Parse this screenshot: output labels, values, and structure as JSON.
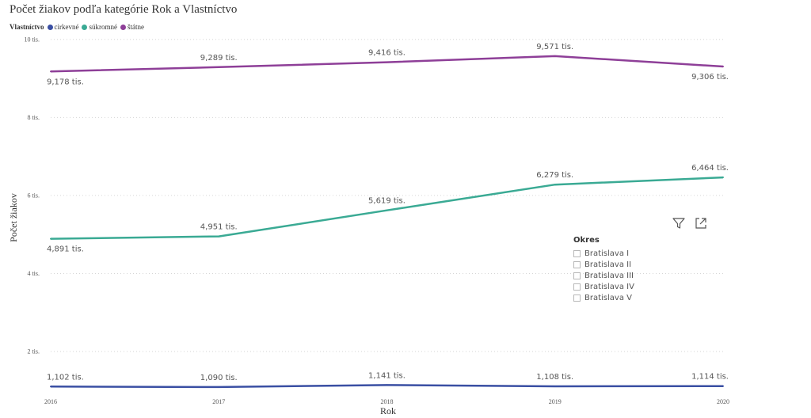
{
  "title": "Počet žiakov podľa kategórie Rok a Vlastníctvo",
  "legend": {
    "title": "Vlastníctvo",
    "items": [
      {
        "label": "cirkevné",
        "color": "#3a4fa3"
      },
      {
        "label": "súkromné",
        "color": "#3aaa94"
      },
      {
        "label": "štátne",
        "color": "#8e3f98"
      }
    ]
  },
  "slicer": {
    "title": "Okres",
    "items": [
      "Bratislava I",
      "Bratislava II",
      "Bratislava III",
      "Bratislava IV",
      "Bratislava V"
    ]
  },
  "toolbar": {
    "filter_icon": "filter-icon",
    "focus_icon": "focus-mode-icon"
  },
  "chart_data": {
    "type": "line",
    "xlabel": "Rok",
    "ylabel": "Počet žiakov",
    "x": [
      2016,
      2017,
      2018,
      2019,
      2020
    ],
    "x_tick_labels": [
      "2016",
      "2017",
      "2018",
      "2019",
      "2020"
    ],
    "y_ticks": [
      2000,
      4000,
      6000,
      8000,
      10000
    ],
    "y_tick_labels": [
      "2 tis.",
      "4 tis.",
      "6 tis.",
      "8 tis.",
      "10 tis."
    ],
    "ylim": [
      900,
      10000
    ],
    "grid": true,
    "legend_position": "top-left",
    "series": [
      {
        "name": "cirkevné",
        "color": "#3a4fa3",
        "values": [
          1102,
          1090,
          1141,
          1108,
          1114
        ],
        "labels": [
          "1,102 tis.",
          "1,090 tis.",
          "1,141 tis.",
          "1,108 tis.",
          "1,114 tis."
        ]
      },
      {
        "name": "súkromné",
        "color": "#3aaa94",
        "values": [
          4891,
          4951,
          5619,
          6279,
          6464
        ],
        "labels": [
          "4,891 tis.",
          "4,951 tis.",
          "5,619 tis.",
          "6,279 tis.",
          "6,464 tis."
        ]
      },
      {
        "name": "štátne",
        "color": "#8e3f98",
        "values": [
          9178,
          9289,
          9416,
          9571,
          9306
        ],
        "labels": [
          "9,178 tis.",
          "9,289 tis.",
          "9,416 tis.",
          "9,571 tis.",
          "9,306 tis."
        ]
      }
    ]
  }
}
